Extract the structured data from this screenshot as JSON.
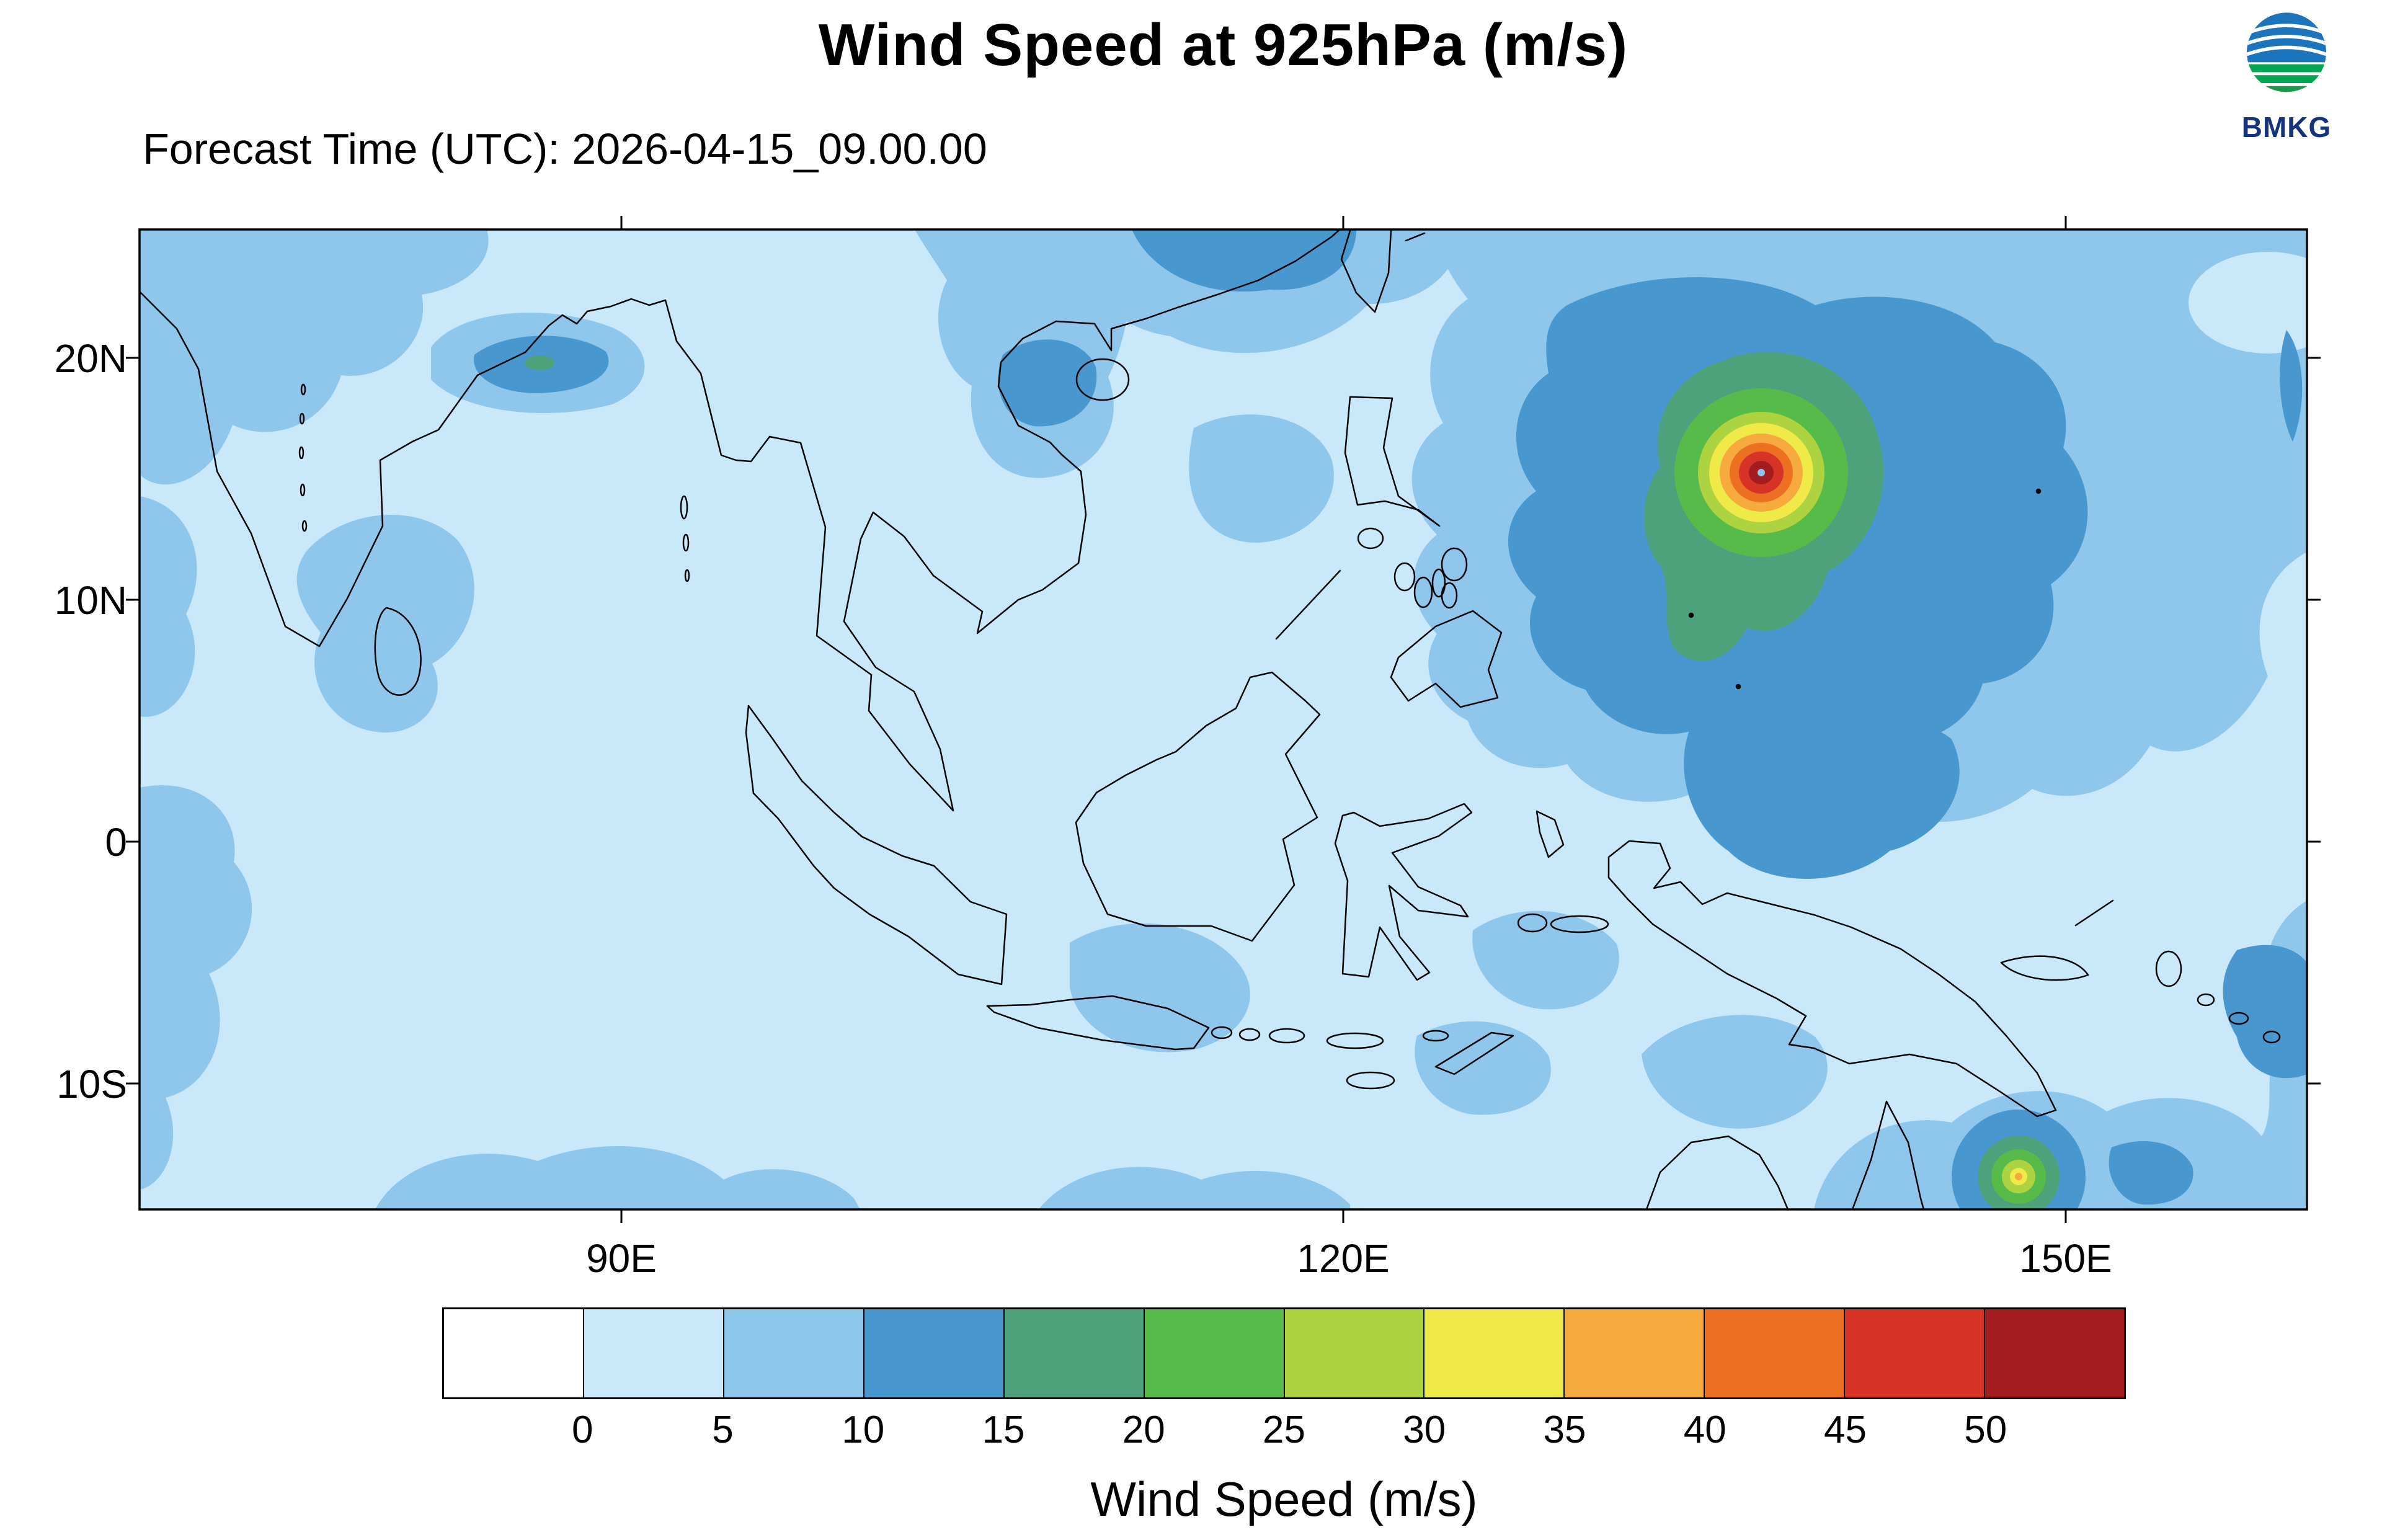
{
  "title": "Wind Speed at 925hPa (m/s)",
  "subtitle": "Forecast Time (UTC): 2026-04-15_09.00.00",
  "logo": {
    "text": "BMKG"
  },
  "map": {
    "lat_ticks": [
      {
        "label": "20N"
      },
      {
        "label": "10N"
      },
      {
        "label": "0"
      },
      {
        "label": "10S"
      }
    ],
    "lon_ticks": [
      {
        "label": "90E"
      },
      {
        "label": "120E"
      },
      {
        "label": "150E"
      }
    ]
  },
  "colorbar": {
    "title": "Wind Speed (m/s)",
    "tick_labels": [
      "0",
      "5",
      "10",
      "15",
      "20",
      "25",
      "30",
      "35",
      "40",
      "45",
      "50"
    ],
    "colors": [
      "#FFFFFF",
      "#C9E8FA",
      "#8FC6EC",
      "#4897CE",
      "#4EA27B",
      "#57BB49",
      "#AED341",
      "#F0EA49",
      "#F6A93C",
      "#ED6F21",
      "#D73327",
      "#A21C20"
    ]
  },
  "chart_data": {
    "type": "heatmap",
    "title": "Wind Speed at 925hPa (m/s)",
    "forecast_time_utc": "2026-04-15_09.00.00",
    "variable": "wind speed",
    "pressure_level_hPa": 925,
    "units": "m/s",
    "source_label": "BMKG",
    "lon_range_deg_east": [
      70,
      160
    ],
    "lat_range_deg_north": [
      -15.3,
      25.3
    ],
    "x_tick_labels": [
      "90E",
      "120E",
      "150E"
    ],
    "y_tick_labels": [
      "20N",
      "10N",
      "0",
      "10S"
    ],
    "contour_levels_ms": [
      0,
      5,
      10,
      15,
      20,
      25,
      30,
      35,
      40,
      45,
      50
    ],
    "palette_hex": [
      "#FFFFFF",
      "#C9E8FA",
      "#8FC6EC",
      "#4897CE",
      "#4EA27B",
      "#57BB49",
      "#AED341",
      "#F0EA49",
      "#F6A93C",
      "#ED6F21",
      "#D73327",
      "#A21C20"
    ],
    "legend_position": "bottom",
    "features": [
      {
        "name": "primary tropical cyclone",
        "approx_lon_e": 137.5,
        "approx_lat_n": 15.2,
        "peak_wind_ms": "> 50"
      },
      {
        "name": "secondary cyclone (Coral Sea, clipped at map bottom)",
        "approx_lon_e": 148,
        "approx_lat_n": -14.5,
        "peak_wind_ms": "~ 35"
      },
      {
        "name": "background ocean winds",
        "wind_ms": "0 - 15"
      }
    ]
  }
}
